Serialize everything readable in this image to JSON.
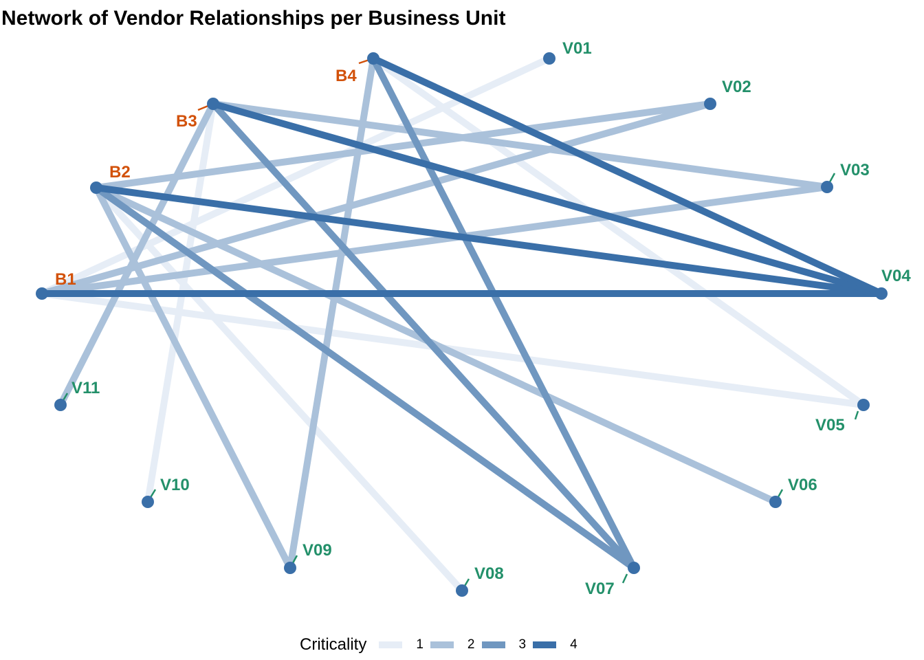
{
  "title": "Network of Vendor Relationships per Business Unit",
  "colors": {
    "business_unit_label": "#d2510a",
    "vendor_label": "#23906a",
    "node": "#3a6fa8",
    "edge_1": "#e6edf6",
    "edge_2": "#aac1da",
    "edge_3": "#7097c0",
    "edge_4": "#3a6fa8"
  },
  "legend": {
    "title": "Criticality",
    "items": [
      {
        "label": "1",
        "level": 1
      },
      {
        "label": "2",
        "level": 2
      },
      {
        "label": "3",
        "level": 3
      },
      {
        "label": "4",
        "level": 4
      }
    ]
  },
  "nodes": [
    {
      "id": "B1",
      "label": "B1",
      "type": "business_unit"
    },
    {
      "id": "B2",
      "label": "B2",
      "type": "business_unit"
    },
    {
      "id": "B3",
      "label": "B3",
      "type": "business_unit"
    },
    {
      "id": "B4",
      "label": "B4",
      "type": "business_unit"
    },
    {
      "id": "V01",
      "label": "V01",
      "type": "vendor"
    },
    {
      "id": "V02",
      "label": "V02",
      "type": "vendor"
    },
    {
      "id": "V03",
      "label": "V03",
      "type": "vendor"
    },
    {
      "id": "V04",
      "label": "V04",
      "type": "vendor"
    },
    {
      "id": "V05",
      "label": "V05",
      "type": "vendor"
    },
    {
      "id": "V06",
      "label": "V06",
      "type": "vendor"
    },
    {
      "id": "V07",
      "label": "V07",
      "type": "vendor"
    },
    {
      "id": "V08",
      "label": "V08",
      "type": "vendor"
    },
    {
      "id": "V09",
      "label": "V09",
      "type": "vendor"
    },
    {
      "id": "V10",
      "label": "V10",
      "type": "vendor"
    },
    {
      "id": "V11",
      "label": "V11",
      "type": "vendor"
    }
  ],
  "edges": [
    {
      "source": "B1",
      "target": "V01",
      "criticality": 1
    },
    {
      "source": "B1",
      "target": "V02",
      "criticality": 2
    },
    {
      "source": "B1",
      "target": "V03",
      "criticality": 2
    },
    {
      "source": "B1",
      "target": "V04",
      "criticality": 4
    },
    {
      "source": "B1",
      "target": "V05",
      "criticality": 1
    },
    {
      "source": "B2",
      "target": "V02",
      "criticality": 2
    },
    {
      "source": "B2",
      "target": "V04",
      "criticality": 4
    },
    {
      "source": "B2",
      "target": "V06",
      "criticality": 2
    },
    {
      "source": "B2",
      "target": "V07",
      "criticality": 3
    },
    {
      "source": "B2",
      "target": "V08",
      "criticality": 1
    },
    {
      "source": "B2",
      "target": "V09",
      "criticality": 2
    },
    {
      "source": "B3",
      "target": "V03",
      "criticality": 2
    },
    {
      "source": "B3",
      "target": "V04",
      "criticality": 4
    },
    {
      "source": "B3",
      "target": "V07",
      "criticality": 3
    },
    {
      "source": "B3",
      "target": "V10",
      "criticality": 1
    },
    {
      "source": "B3",
      "target": "V11",
      "criticality": 2
    },
    {
      "source": "B4",
      "target": "V04",
      "criticality": 4
    },
    {
      "source": "B4",
      "target": "V05",
      "criticality": 1
    },
    {
      "source": "B4",
      "target": "V07",
      "criticality": 3
    },
    {
      "source": "B4",
      "target": "V09",
      "criticality": 2
    }
  ]
}
